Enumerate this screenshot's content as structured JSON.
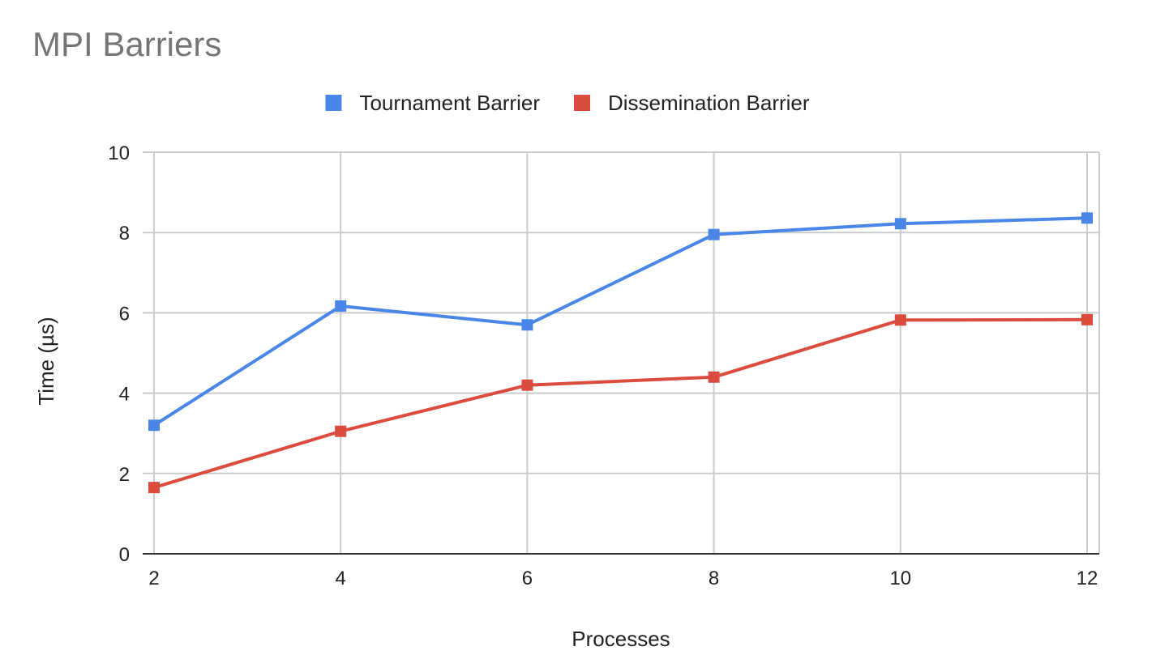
{
  "chart_data": {
    "type": "line",
    "title": "MPI Barriers",
    "xlabel": "Processes",
    "ylabel": "Time (µs)",
    "x": [
      2,
      4,
      6,
      8,
      10,
      12
    ],
    "x_tick_labels": [
      "2",
      "4",
      "6",
      "8",
      "10",
      "12"
    ],
    "ylim": [
      0,
      10
    ],
    "y_ticks": [
      0,
      2,
      4,
      6,
      8,
      10
    ],
    "y_tick_labels": [
      "0",
      "2",
      "4",
      "6",
      "8",
      "10"
    ],
    "grid": true,
    "legend_position": "top",
    "series": [
      {
        "name": "Tournament Barrier",
        "color": "#4a86e8",
        "marker": "square",
        "values": [
          3.2,
          6.17,
          5.7,
          7.95,
          8.22,
          8.36
        ]
      },
      {
        "name": "Dissemination Barrier",
        "color": "#db4c3f",
        "marker": "square",
        "values": [
          1.65,
          3.05,
          4.2,
          4.4,
          5.82,
          5.83
        ]
      }
    ]
  }
}
